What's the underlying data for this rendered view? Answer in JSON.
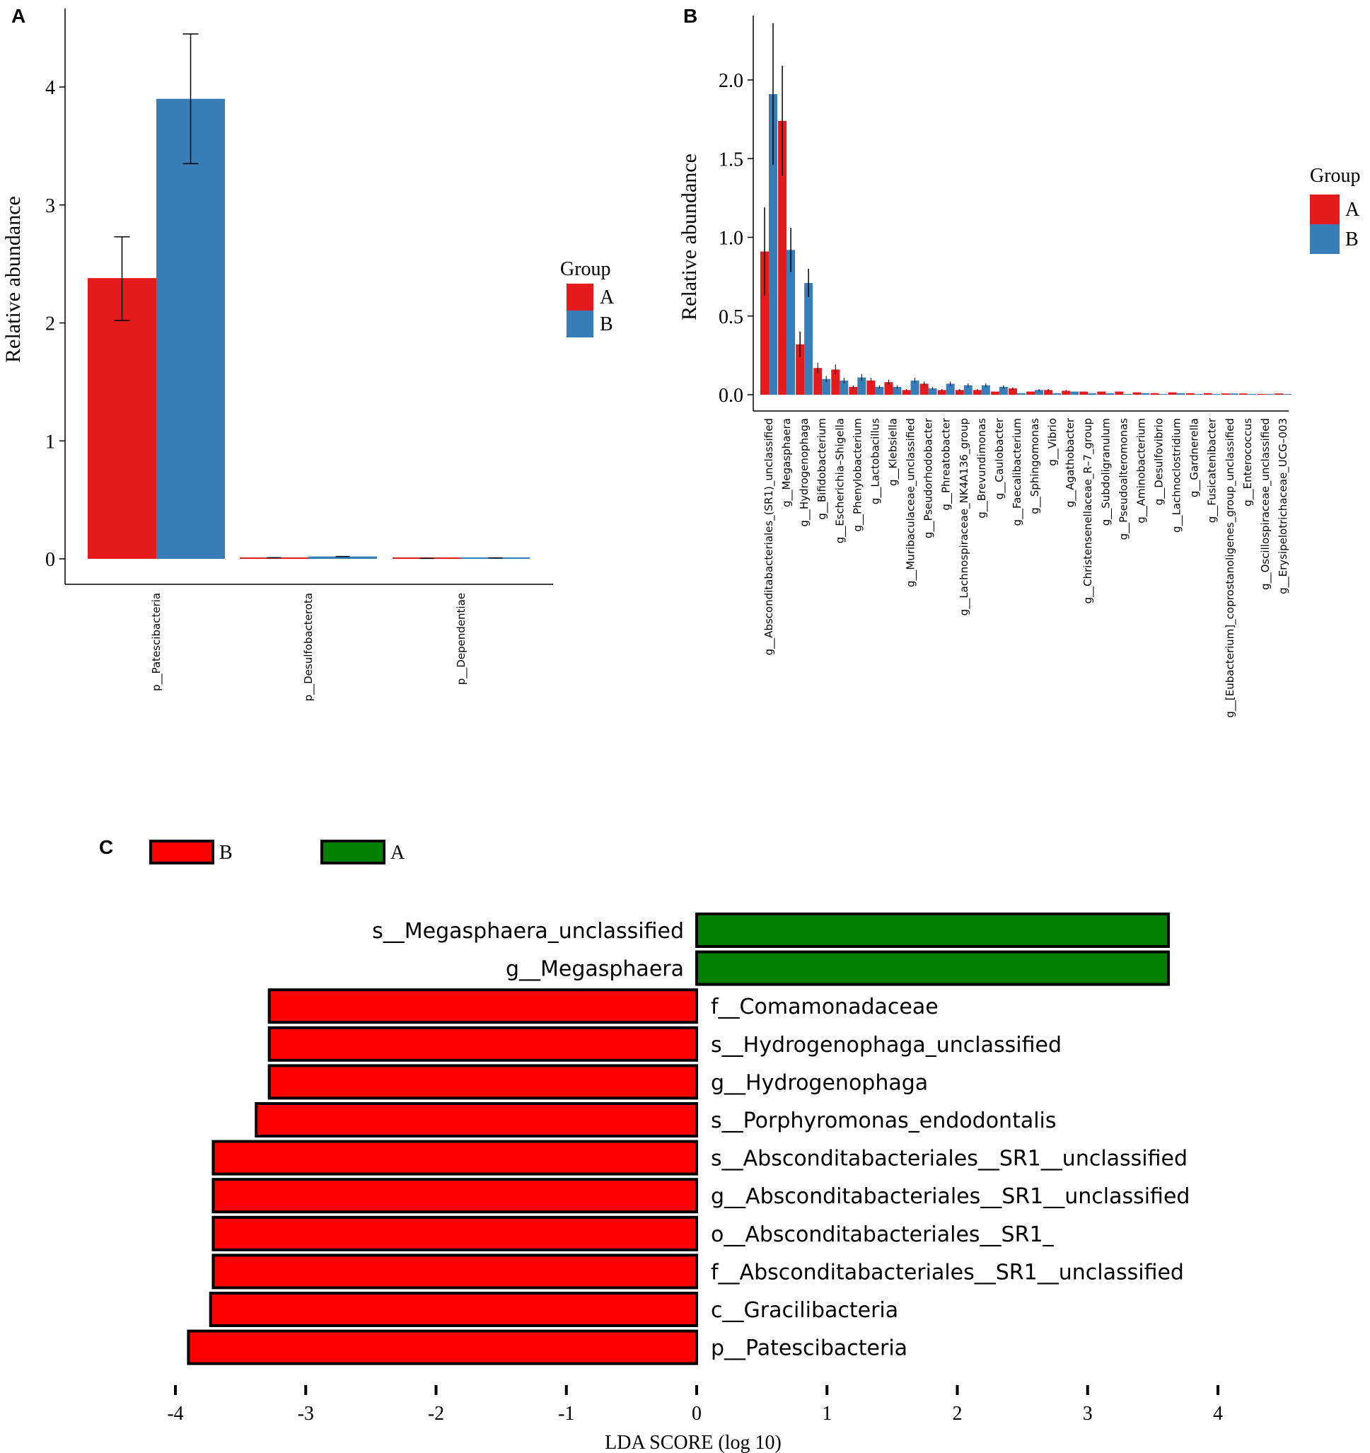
{
  "colors": {
    "A": "#e41a1c",
    "B": "#377eb8",
    "lda_A": "#008000",
    "lda_B": "#ff0000"
  },
  "chart_data": [
    {
      "panel": "A",
      "type": "bar",
      "ylabel": "Relative abundance",
      "ylim": [
        0,
        4.6
      ],
      "yticks": [
        0,
        1,
        2,
        3,
        4
      ],
      "categories": [
        "p__Patescibacteria",
        "p__Desulfobacterota",
        "p__Dependentiae"
      ],
      "series": [
        {
          "name": "A",
          "values": [
            2.38,
            0.01,
            0.004
          ],
          "err_low": [
            2.02,
            0.0,
            0.0
          ],
          "err_high": [
            2.73,
            0.0,
            0.0
          ]
        },
        {
          "name": "B",
          "values": [
            3.9,
            0.02,
            0.008
          ],
          "err_low": [
            3.35,
            0.0,
            0.0
          ],
          "err_high": [
            4.45,
            0.0,
            0.0
          ]
        }
      ],
      "legend": {
        "title": "Group",
        "entries": [
          "A",
          "B"
        ],
        "position": "right"
      }
    },
    {
      "panel": "B",
      "type": "bar",
      "ylabel": "Relative abundance",
      "ylim": [
        0,
        2.4
      ],
      "yticks": [
        "0.0",
        "0.5",
        "1.0",
        "1.5",
        "2.0"
      ],
      "categories": [
        "g__Absconditabacteriales_(SR1)_unclassified",
        "g__Megasphaera",
        "g__Hydrogenophaga",
        "g__Bifidobacterium",
        "g__Escherichia–Shigella",
        "g__Phenylobacterium",
        "g__Lactobacillus",
        "g__Klebsiella",
        "g__Muribaculaceae_unclassified",
        "g__Pseudorhodobacter",
        "g__Phreatobacter",
        "g__Lachnospiraceae_NK4A136_group",
        "g__Brevundimonas",
        "g__Caulobacter",
        "g__Faecalibacterium",
        "g__Sphingomonas",
        "g__Vibrio",
        "g__Agathobacter",
        "g__Christensenellaceae_R–7_group",
        "g__Subdoligranulum",
        "g__Pseudoalteromonas",
        "g__Aminobacterium",
        "g__Desulfovibrio",
        "g__Lachnoclostridium",
        "g__Gardnerella",
        "g__Fusicatenibacter",
        "g__[Eubacterium]_coprostanoligenes_group_unclassified",
        "g__Enterococcus",
        "g__Oscillospiraceae_unclassified",
        "g__Erysipelotrichaceae_UCG–003"
      ],
      "series": [
        {
          "name": "A",
          "values": [
            0.91,
            1.74,
            0.32,
            0.17,
            0.16,
            0.05,
            0.09,
            0.08,
            0.03,
            0.07,
            0.03,
            0.03,
            0.03,
            0.02,
            0.04,
            0.02,
            0.03,
            0.025,
            0.02,
            0.02,
            0.02,
            0.015,
            0.01,
            0.015,
            0.01,
            0.01,
            0.008,
            0.008,
            0.005,
            0.008
          ]
        },
        {
          "name": "B",
          "values": [
            1.91,
            0.92,
            0.71,
            0.1,
            0.09,
            0.11,
            0.05,
            0.05,
            0.09,
            0.04,
            0.07,
            0.06,
            0.06,
            0.05,
            0.01,
            0.03,
            0.01,
            0.02,
            0.01,
            0.01,
            0.005,
            0.01,
            0.005,
            0.01,
            0.005,
            0.005,
            0.008,
            0.005,
            0.005,
            0.005
          ]
        }
      ],
      "legend": {
        "title": "Group",
        "entries": [
          "A",
          "B"
        ],
        "position": "right"
      }
    },
    {
      "panel": "C",
      "type": "bar",
      "orientation": "horizontal",
      "xlabel": "LDA SCORE (log 10)",
      "xlim": [
        -4,
        4
      ],
      "xticks": [
        "-4",
        "-3",
        "-2",
        "-1",
        "0",
        "1",
        "2",
        "3",
        "4"
      ],
      "categories": [
        "s__Megasphaera_unclassified",
        "g__Megasphaera",
        "f__Comamonadaceae",
        "s__Hydrogenophaga_unclassified",
        "g__Hydrogenophaga",
        "s__Porphyromonas_endodontalis",
        "s__Absconditabacteriales__SR1__unclassified",
        "g__Absconditabacteriales__SR1__unclassified",
        "o__Absconditabacteriales__SR1_",
        "f__Absconditabacteriales__SR1__unclassified",
        "c__Gracilibacteria",
        "p__Patescibacteria"
      ],
      "values": [
        3.62,
        3.62,
        -3.28,
        -3.28,
        -3.28,
        -3.38,
        -3.71,
        -3.71,
        -3.71,
        -3.71,
        -3.73,
        -3.9
      ],
      "groups": [
        "A",
        "A",
        "B",
        "B",
        "B",
        "B",
        "B",
        "B",
        "B",
        "B",
        "B",
        "B"
      ],
      "legend": {
        "entries": [
          "B",
          "A"
        ],
        "position": "top-left"
      }
    }
  ],
  "panel_labels": [
    "A",
    "B",
    "C"
  ]
}
